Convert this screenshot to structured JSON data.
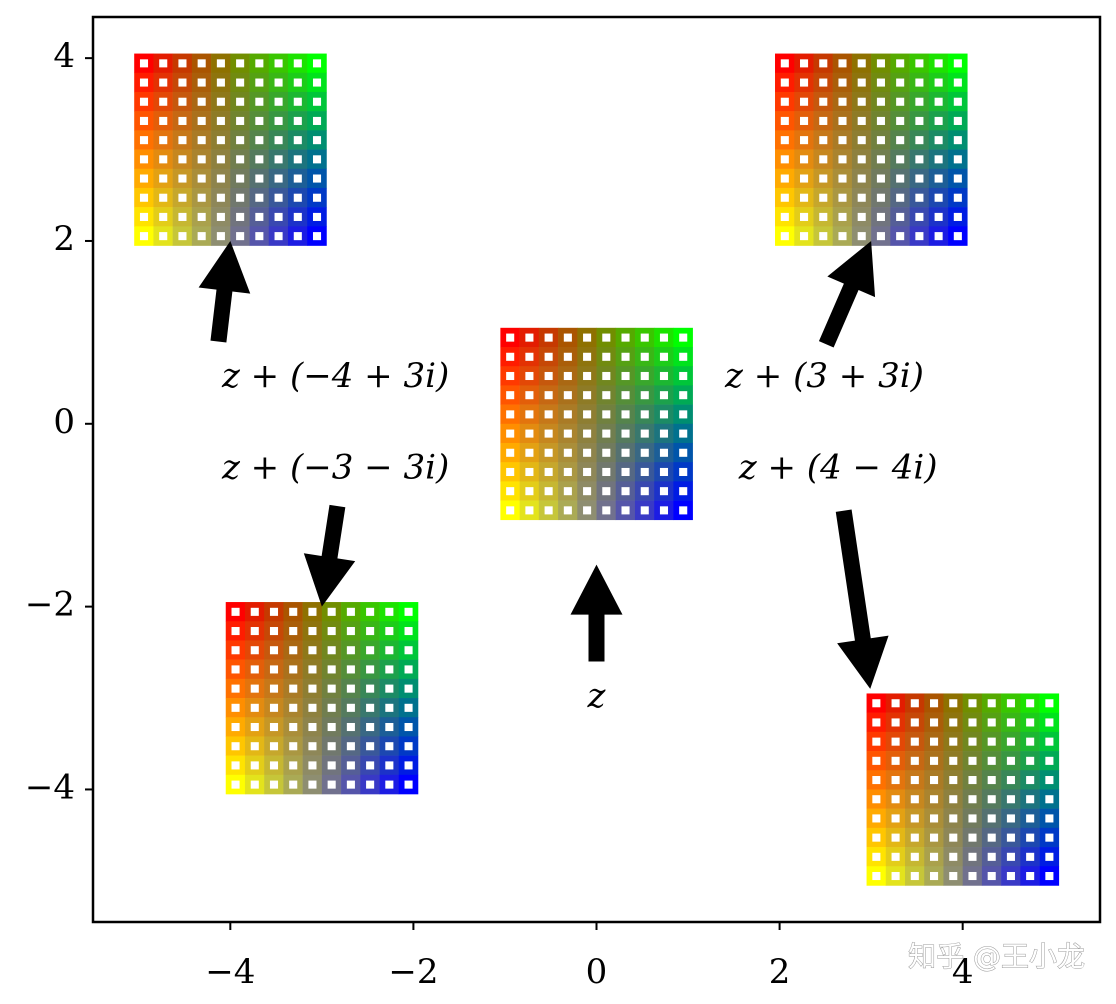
{
  "chart_data": {
    "type": "translation",
    "xlim": [
      -5.5,
      5.5
    ],
    "ylim": [
      -5.45,
      4.45
    ],
    "xticks": [
      {
        "value": -4,
        "label": "−4"
      },
      {
        "value": -2,
        "label": "−2"
      },
      0,
      2,
      4
    ],
    "yticks": [
      4,
      2,
      0,
      {
        "value": -2,
        "label": "−2"
      },
      {
        "value": -4,
        "label": "−4"
      }
    ],
    "grid_points": 10,
    "corner_colors": {
      "top_left": "#ff0000",
      "top_right": "#00ff00",
      "bottom_left": "#ffff00",
      "bottom_right": "#0000ff"
    },
    "series": [
      {
        "x": 0,
        "y": 0
      },
      {
        "x": -4,
        "y": 3
      },
      {
        "x": 3,
        "y": 3
      },
      {
        "x": -3,
        "y": -3
      },
      {
        "x": 4,
        "y": -4
      }
    ],
    "annotations": [
      {
        "text": "z + (−4 + 3i)",
        "text_xy": [
          -2.85,
          0.5
        ],
        "arrow_from": [
          -4.13,
          0.9
        ],
        "arrow_to": [
          -4,
          2
        ]
      },
      {
        "text": "z + (3 + 3i)",
        "text_xy": [
          2.49,
          0.5
        ],
        "arrow_from": [
          2.51,
          0.87
        ],
        "arrow_to": [
          3,
          2
        ]
      },
      {
        "text": "z + (−3 − 3i)",
        "text_xy": [
          -2.85,
          -0.5
        ],
        "arrow_from": [
          -2.83,
          -0.9
        ],
        "arrow_to": [
          -3,
          -2
        ]
      },
      {
        "text": "z + (4 − 4i)",
        "text_xy": [
          2.64,
          -0.5
        ],
        "arrow_from": [
          2.7,
          -0.95
        ],
        "arrow_to": [
          2.99,
          -2.9
        ]
      },
      {
        "text": "z",
        "text_xy": [
          0,
          -3.0
        ],
        "arrow_from": [
          0,
          -2.6
        ],
        "arrow_to": [
          0,
          -1.54
        ]
      }
    ],
    "watermark": "知乎 @王小龙"
  }
}
